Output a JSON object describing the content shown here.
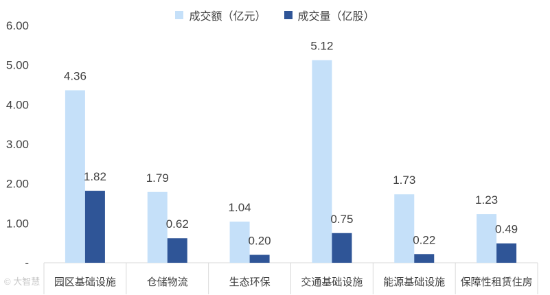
{
  "chart_data": {
    "type": "bar",
    "categories": [
      "园区基础设施",
      "仓储物流",
      "生态环保",
      "交通基础设施",
      "能源基础设施",
      "保障性租赁住房"
    ],
    "series": [
      {
        "name": "成交额（亿元）",
        "color": "#c5e0f9",
        "values": [
          4.36,
          1.79,
          1.04,
          5.12,
          1.73,
          1.23
        ],
        "labels": [
          "4.36",
          "1.79",
          "1.04",
          "5.12",
          "1.73",
          "1.23"
        ]
      },
      {
        "name": "成交量（亿股）",
        "color": "#2f5597",
        "values": [
          1.82,
          0.62,
          0.2,
          0.75,
          0.22,
          0.49
        ],
        "labels": [
          "1.82",
          "0.62",
          "0.20",
          "0.75",
          "0.22",
          "0.49"
        ]
      }
    ],
    "y_ticks": [
      0,
      1,
      2,
      3,
      4,
      5,
      6
    ],
    "y_tick_labels": [
      "-",
      "1.00",
      "2.00",
      "3.00",
      "4.00",
      "5.00",
      "6.00"
    ],
    "ylim": [
      0,
      6
    ],
    "legend_position": "top",
    "grid": false
  },
  "watermark": "大智慧"
}
